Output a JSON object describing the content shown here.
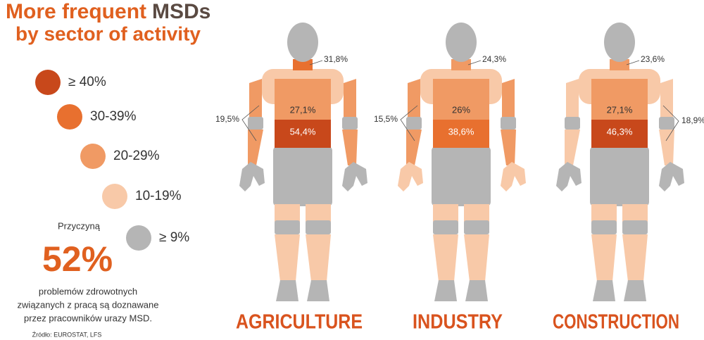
{
  "header": {
    "title_part1": "More frequent",
    "title_part2": "MSDs",
    "subtitle": "by sector of activity"
  },
  "legend": [
    "≥ 40%",
    "30-39%",
    "20-29%",
    "10-19%",
    "≥ 9%"
  ],
  "note": {
    "intro": "Przyczyną",
    "figure": "52%",
    "lines": [
      "problemów zdrowotnych",
      "związanych z pracą są doznawane",
      "przez pracowników urazy MSD."
    ],
    "source": "Źródło: EUROSTAT, LFS"
  },
  "figures": [
    {
      "sector": "AGRICULTURE",
      "neck": "31,8%",
      "upper_back": "27,1%",
      "lower_back": "54,4%",
      "arms": "19,5%"
    },
    {
      "sector": "INDUSTRY",
      "neck": "24,3%",
      "upper_back": "26%",
      "lower_back": "38,6%",
      "arms": "15,5%"
    },
    {
      "sector": "CONSTRUCTION",
      "neck": "23,6%",
      "upper_back": "27,1%",
      "lower_back": "46,3%",
      "arms": "18,9%"
    }
  ]
}
